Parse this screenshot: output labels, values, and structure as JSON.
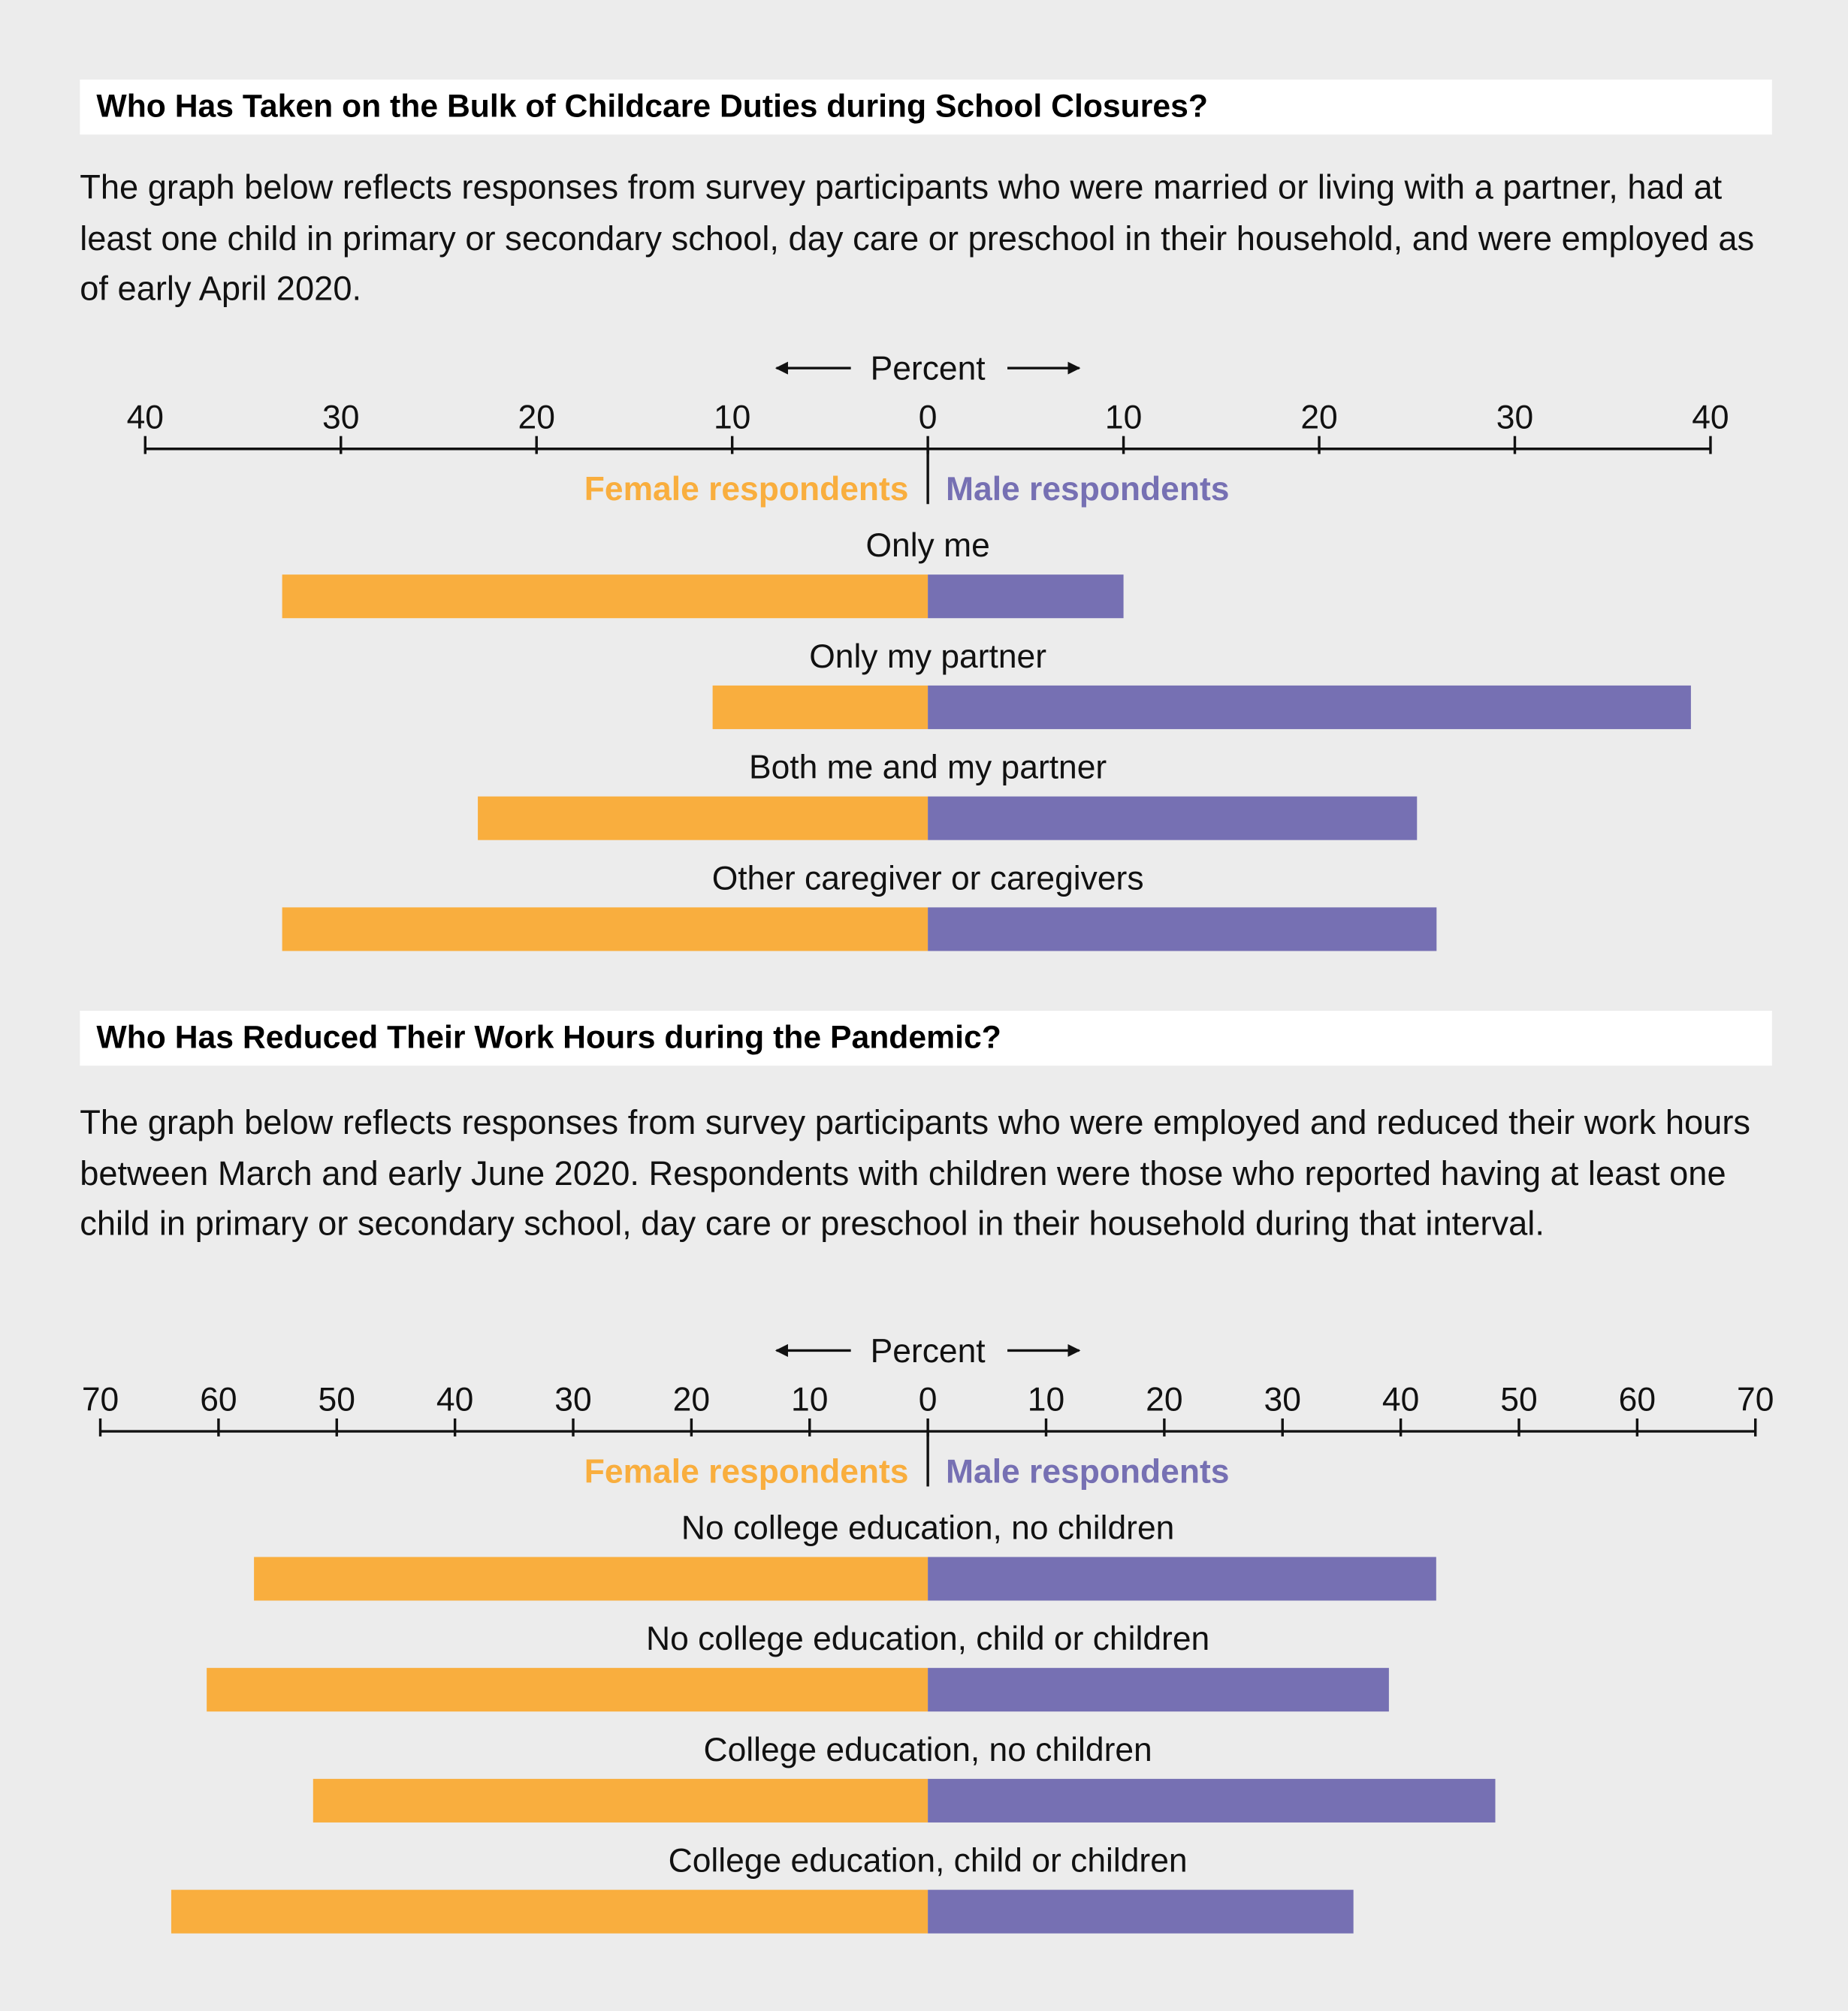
{
  "chart_data": [
    {
      "type": "butterfly-bar",
      "title": "Who Has Taken on the Bulk of Childcare Duties during School Closures?",
      "subtitle": "The graph below reflects responses from survey participants who were married or living with a partner, had at least one child in primary or secondary school, day care or preschool in their household, and were employed as of early April 2020.",
      "x_label": "Percent",
      "categories": [
        "Only me",
        "Only my partner",
        "Both me and my partner",
        "Other caregiver or caregivers"
      ],
      "series": [
        {
          "name": "Female respondents",
          "color": "#f9ae3e",
          "side": "left",
          "values": [
            33,
            11,
            23,
            33
          ]
        },
        {
          "name": "Male respondents",
          "color": "#7670b3",
          "side": "right",
          "values": [
            10,
            39,
            25,
            26
          ]
        }
      ],
      "xlim": [
        -40,
        40
      ],
      "xticks": [
        {
          "value": -40,
          "label": "40"
        },
        {
          "value": -30,
          "label": "30"
        },
        {
          "value": -20,
          "label": "20"
        },
        {
          "value": -10,
          "label": "10"
        },
        0,
        10,
        20,
        30,
        40
      ]
    },
    {
      "type": "butterfly-bar",
      "title": "Who Has Reduced Their Work Hours during the Pandemic?",
      "subtitle": "The graph below reflects responses from survey participants who were employed and reduced their work hours between March and early June 2020. Respondents with children were those who reported having at least one child in primary or secondary school, day care or preschool in their household during that interval.",
      "x_label": "Percent",
      "categories": [
        "No college education, no children",
        "No college education, child or children",
        "College education, no children",
        "College education, child or children"
      ],
      "series": [
        {
          "name": "Female respondents",
          "color": "#f9ae3e",
          "side": "left",
          "values": [
            57,
            61,
            52,
            64
          ]
        },
        {
          "name": "Male respondents",
          "color": "#7670b3",
          "side": "right",
          "values": [
            43,
            39,
            48,
            36
          ]
        }
      ],
      "xlim": [
        -70,
        70
      ],
      "xticks": [
        {
          "value": -70,
          "label": "70"
        },
        {
          "value": -60,
          "label": "60"
        },
        {
          "value": -50,
          "label": "50"
        },
        {
          "value": -40,
          "label": "40"
        },
        {
          "value": -30,
          "label": "30"
        },
        {
          "value": -20,
          "label": "20"
        },
        {
          "value": -10,
          "label": "10"
        },
        0,
        10,
        20,
        30,
        40,
        50,
        60,
        70
      ]
    }
  ]
}
